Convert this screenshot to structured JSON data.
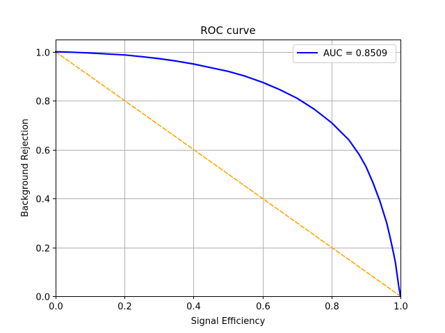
{
  "chart_data": {
    "type": "line",
    "title": "ROC curve",
    "xlabel": "Signal Efficiency",
    "ylabel": "Background Rejection",
    "xlim": [
      0,
      1
    ],
    "ylim": [
      0,
      1.05
    ],
    "xticks": [
      0.0,
      0.2,
      0.4,
      0.6,
      0.8,
      1.0
    ],
    "yticks": [
      0.0,
      0.2,
      0.4,
      0.6,
      0.8,
      1.0
    ],
    "xtick_labels": [
      "0.0",
      "0.2",
      "0.4",
      "0.6",
      "0.8",
      "1.0"
    ],
    "ytick_labels": [
      "0.0",
      "0.2",
      "0.4",
      "0.6",
      "0.8",
      "1.0"
    ],
    "grid": true,
    "legend_position": "top-right",
    "series": [
      {
        "name": "AUC = 0.8509",
        "color": "#0000ff",
        "style": "solid",
        "x": [
          0.0,
          0.05,
          0.1,
          0.15,
          0.2,
          0.25,
          0.3,
          0.35,
          0.4,
          0.45,
          0.5,
          0.55,
          0.6,
          0.65,
          0.7,
          0.75,
          0.8,
          0.85,
          0.88,
          0.9,
          0.92,
          0.94,
          0.96,
          0.97,
          0.98,
          0.985,
          0.99,
          0.995,
          0.998,
          1.0
        ],
        "y": [
          1.0,
          0.998,
          0.995,
          0.991,
          0.987,
          0.98,
          0.972,
          0.962,
          0.95,
          0.935,
          0.92,
          0.9,
          0.875,
          0.845,
          0.81,
          0.765,
          0.71,
          0.64,
          0.58,
          0.53,
          0.465,
          0.39,
          0.3,
          0.24,
          0.175,
          0.14,
          0.09,
          0.04,
          0.015,
          0.0
        ]
      },
      {
        "name": "",
        "color": "#ffa500",
        "style": "dashed",
        "x": [
          0.0,
          1.0
        ],
        "y": [
          1.0,
          0.0
        ]
      }
    ]
  }
}
